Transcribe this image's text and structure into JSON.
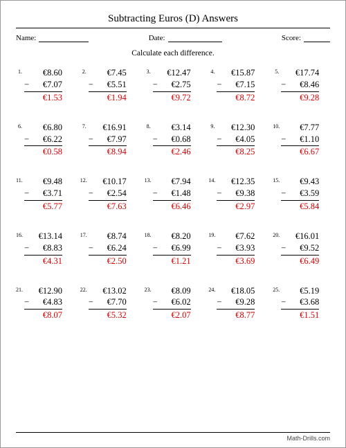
{
  "title": "Subtracting Euros (D) Answers",
  "meta": {
    "name_label": "Name:",
    "date_label": "Date:",
    "score_label": "Score:"
  },
  "instruction": "Calculate each difference.",
  "footer": "Math-Drills.com",
  "currency": "€",
  "minus": "−",
  "problems": [
    {
      "n": "1.",
      "a": "€8.60",
      "b": "€7.07",
      "ans": "€1.53"
    },
    {
      "n": "2.",
      "a": "€7.45",
      "b": "€5.51",
      "ans": "€1.94"
    },
    {
      "n": "3.",
      "a": "€12.47",
      "b": "€2.75",
      "ans": "€9.72"
    },
    {
      "n": "4.",
      "a": "€15.87",
      "b": "€7.15",
      "ans": "€8.72"
    },
    {
      "n": "5.",
      "a": "€17.74",
      "b": "€8.46",
      "ans": "€9.28"
    },
    {
      "n": "6.",
      "a": "€6.80",
      "b": "€6.22",
      "ans": "€0.58"
    },
    {
      "n": "7.",
      "a": "€16.91",
      "b": "€7.97",
      "ans": "€8.94"
    },
    {
      "n": "8.",
      "a": "€3.14",
      "b": "€0.68",
      "ans": "€2.46"
    },
    {
      "n": "9.",
      "a": "€12.30",
      "b": "€4.05",
      "ans": "€8.25"
    },
    {
      "n": "10.",
      "a": "€7.77",
      "b": "€1.10",
      "ans": "€6.67"
    },
    {
      "n": "11.",
      "a": "€9.48",
      "b": "€3.71",
      "ans": "€5.77"
    },
    {
      "n": "12.",
      "a": "€10.17",
      "b": "€2.54",
      "ans": "€7.63"
    },
    {
      "n": "13.",
      "a": "€7.94",
      "b": "€1.48",
      "ans": "€6.46"
    },
    {
      "n": "14.",
      "a": "€12.35",
      "b": "€9.38",
      "ans": "€2.97"
    },
    {
      "n": "15.",
      "a": "€9.43",
      "b": "€3.59",
      "ans": "€5.84"
    },
    {
      "n": "16.",
      "a": "€13.14",
      "b": "€8.83",
      "ans": "€4.31"
    },
    {
      "n": "17.",
      "a": "€8.74",
      "b": "€6.24",
      "ans": "€2.50"
    },
    {
      "n": "18.",
      "a": "€8.20",
      "b": "€6.99",
      "ans": "€1.21"
    },
    {
      "n": "19.",
      "a": "€7.62",
      "b": "€3.93",
      "ans": "€3.69"
    },
    {
      "n": "20.",
      "a": "€16.01",
      "b": "€9.52",
      "ans": "€6.49"
    },
    {
      "n": "21.",
      "a": "€12.90",
      "b": "€4.83",
      "ans": "€8.07"
    },
    {
      "n": "22.",
      "a": "€13.02",
      "b": "€7.70",
      "ans": "€5.32"
    },
    {
      "n": "23.",
      "a": "€8.09",
      "b": "€6.02",
      "ans": "€2.07"
    },
    {
      "n": "24.",
      "a": "€18.05",
      "b": "€9.28",
      "ans": "€8.77"
    },
    {
      "n": "25.",
      "a": "€5.19",
      "b": "€3.68",
      "ans": "€1.51"
    }
  ]
}
